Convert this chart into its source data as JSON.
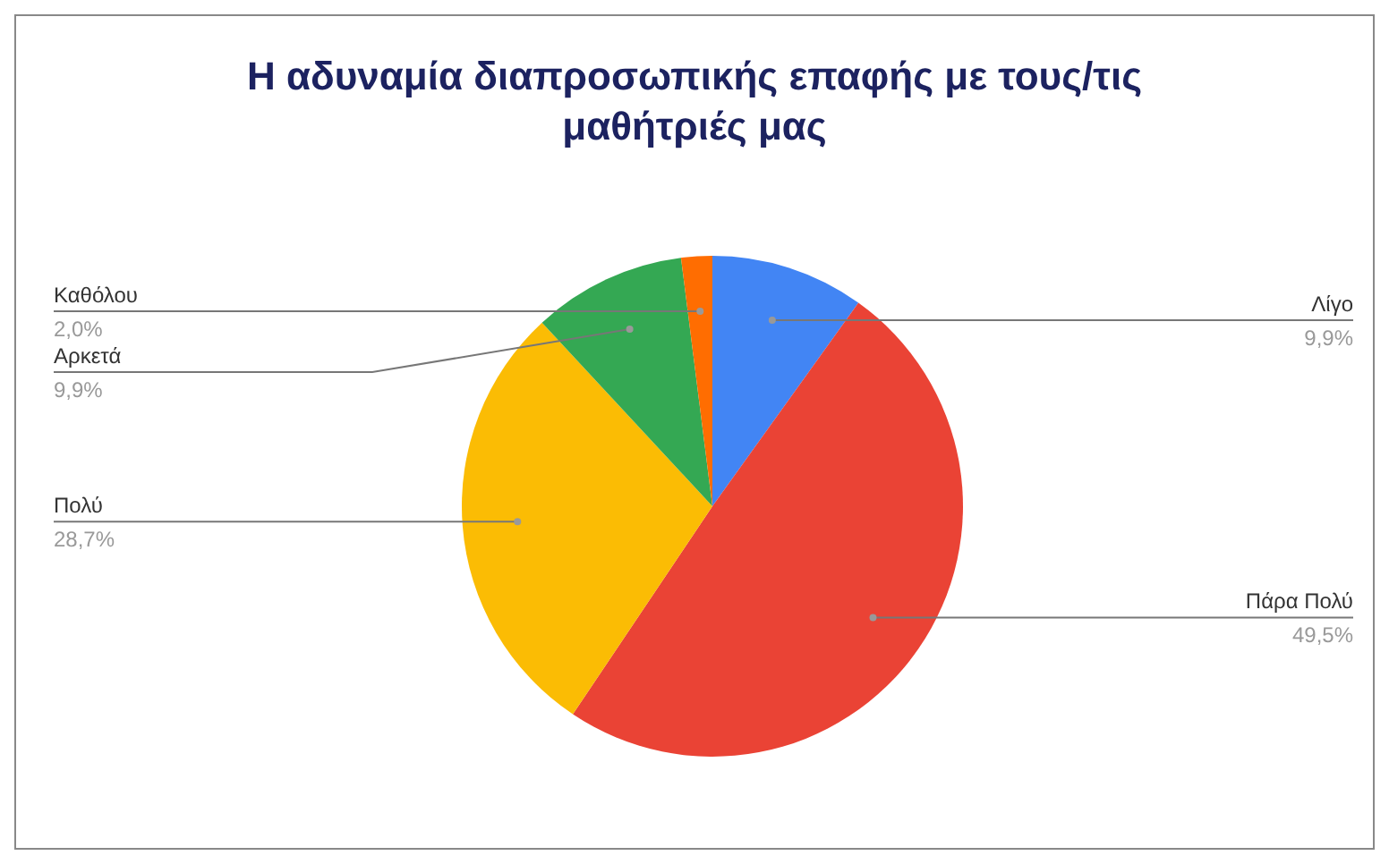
{
  "chart_data": {
    "type": "pie",
    "title": "Η αδυναμία διαπροσωπικής επαφής με τους/τις μαθήτριές μας",
    "categories": [
      "Λίγο",
      "Πάρα Πολύ",
      "Πολύ",
      "Αρκετά",
      "Καθόλου"
    ],
    "values": [
      9.9,
      49.5,
      28.7,
      9.9,
      2.0
    ],
    "colors": [
      "#4285f4",
      "#ea4335",
      "#fbbc04",
      "#34a853",
      "#ff6d01"
    ],
    "value_labels": [
      "9,9%",
      "49,5%",
      "28,7%",
      "9,9%",
      "2,0%"
    ]
  }
}
